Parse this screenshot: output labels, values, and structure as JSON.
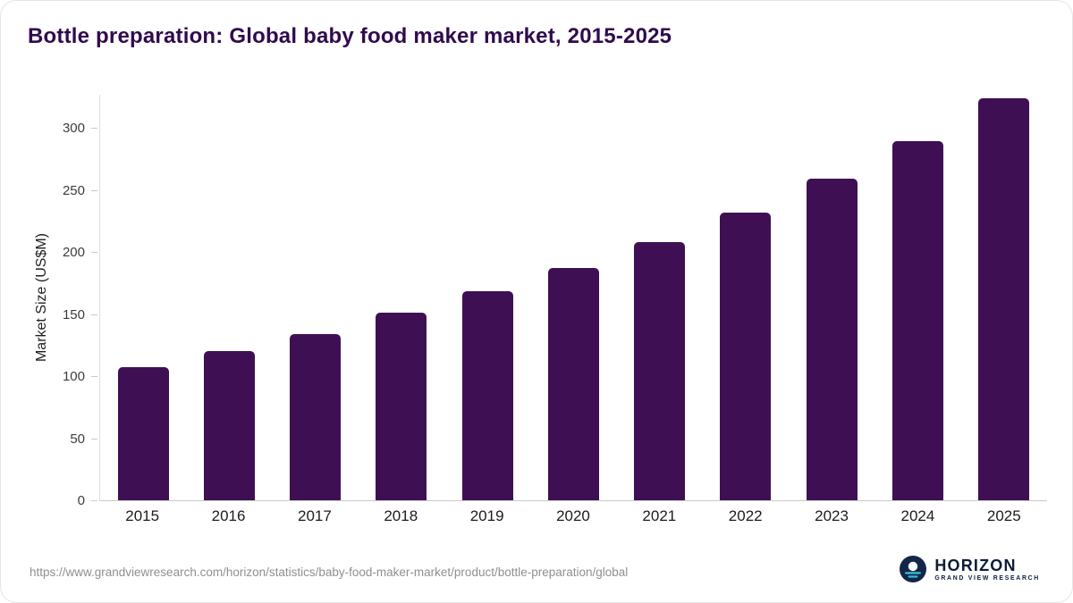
{
  "title": "Bottle preparation: Global baby food maker market, 2015-2025",
  "footer": {
    "source_url": "https://www.grandviewresearch.com/horizon/statistics/baby-food-maker-market/product/bottle-preparation/global",
    "logo_text": "HORIZON",
    "logo_subtext": "GRAND VIEW RESEARCH"
  },
  "colors": {
    "bar": "#3e1053",
    "title": "#310a4d",
    "axis_line": "#c9c9c9",
    "axis_text": "#3c3c3c",
    "url_text": "#8f8f8f",
    "logo_navy": "#0e1c38",
    "logo_teal": "#35bdd4"
  },
  "chart_data": {
    "type": "bar",
    "title": "Bottle preparation: Global baby food maker market, 2015-2025",
    "categories": [
      "2015",
      "2016",
      "2017",
      "2018",
      "2019",
      "2020",
      "2021",
      "2022",
      "2023",
      "2024",
      "2025"
    ],
    "values": [
      107,
      120,
      134,
      151,
      168,
      187,
      208,
      232,
      259,
      289,
      324
    ],
    "xlabel": "",
    "ylabel": "Market Size (US$M)",
    "ylim": [
      0,
      340
    ],
    "yticks": [
      0,
      50,
      100,
      150,
      200,
      250,
      300
    ],
    "grid": false,
    "legend": false,
    "bar_color": "#3e1053"
  }
}
